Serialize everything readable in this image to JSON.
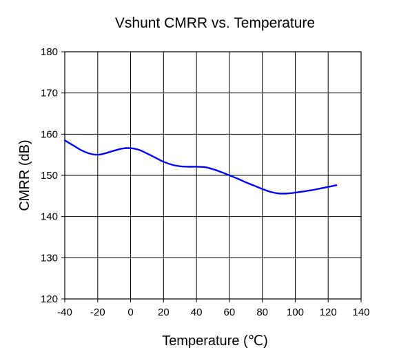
{
  "chart_data": {
    "type": "line",
    "title": "Vshunt CMRR vs. Temperature",
    "xlabel": "Temperature (℃)",
    "ylabel": "CMRR (dB)",
    "xlim": [
      -40,
      140
    ],
    "ylim": [
      120,
      180
    ],
    "xticks": [
      -40,
      -20,
      0,
      20,
      40,
      60,
      80,
      100,
      120,
      140
    ],
    "yticks": [
      120,
      130,
      140,
      150,
      160,
      170,
      180
    ],
    "xtick_labels": [
      "-40",
      "-20",
      "0",
      "20",
      "40",
      "60",
      "80",
      "100",
      "120",
      "140"
    ],
    "ytick_labels": [
      "120",
      "130",
      "140",
      "150",
      "160",
      "170",
      "180"
    ],
    "grid": true,
    "line_color": "#0000ff",
    "series": [
      {
        "x": [
          -40,
          -35,
          -30,
          -25,
          -20,
          -15,
          -10,
          -5,
          0,
          5,
          10,
          15,
          20,
          25,
          30,
          35,
          40,
          45,
          50,
          55,
          60,
          65,
          70,
          75,
          80,
          85,
          90,
          95,
          100,
          105,
          110,
          115,
          120,
          125
        ],
        "y": [
          158.5,
          157.3,
          156.1,
          155.3,
          155.0,
          155.4,
          156.0,
          156.5,
          156.6,
          156.2,
          155.3,
          154.3,
          153.3,
          152.6,
          152.2,
          152.1,
          152.1,
          152.0,
          151.5,
          150.8,
          150.0,
          149.2,
          148.3,
          147.5,
          146.7,
          146.0,
          145.6,
          145.6,
          145.8,
          146.1,
          146.4,
          146.8,
          147.2,
          147.6
        ]
      }
    ]
  }
}
